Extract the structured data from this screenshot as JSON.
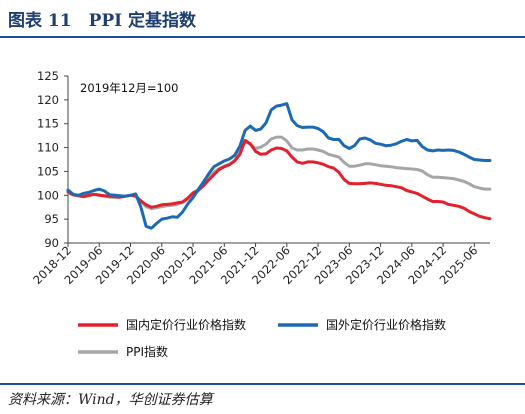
{
  "figure": {
    "title": "图表 11　PPI 定基指数",
    "source": "资料来源：Wind，华创证券估算"
  },
  "chart_data": {
    "type": "line",
    "annotation": "2019年12月=100",
    "ylim": [
      90,
      125
    ],
    "yticks": [
      90,
      95,
      100,
      105,
      110,
      115,
      120,
      125
    ],
    "xticks": [
      "2018-12",
      "2019-06",
      "2019-12",
      "2020-06",
      "2020-12",
      "2021-06",
      "2021-12",
      "2022-06",
      "2022-12",
      "2023-06",
      "2023-12",
      "2024-06",
      "2024-12",
      "2025-06"
    ],
    "x_start": "2018-12",
    "legend_position": "bottom",
    "grid": false,
    "series": [
      {
        "name": "国内定价行业价格指数",
        "color": "#e3202c",
        "values": [
          100.8,
          100.1,
          99.9,
          99.7,
          100.0,
          100.2,
          100.0,
          99.9,
          99.8,
          99.7,
          99.6,
          99.8,
          100.0,
          99.8,
          98.8,
          98.0,
          97.5,
          97.7,
          98.0,
          98.1,
          98.2,
          98.4,
          98.6,
          99.4,
          100.5,
          101.1,
          102.0,
          103.2,
          104.3,
          105.4,
          106.0,
          106.4,
          107.2,
          108.6,
          111.5,
          110.8,
          109.2,
          108.6,
          108.7,
          109.5,
          109.9,
          109.8,
          109.3,
          108.0,
          107.0,
          106.7,
          107.0,
          107.0,
          106.8,
          106.5,
          106.0,
          105.7,
          104.8,
          103.3,
          102.5,
          102.4,
          102.4,
          102.5,
          102.6,
          102.5,
          102.3,
          102.1,
          102.0,
          101.8,
          101.6,
          101.0,
          100.7,
          100.4,
          99.8,
          99.2,
          98.7,
          98.7,
          98.6,
          98.1,
          97.9,
          97.7,
          97.3,
          96.6,
          96.1,
          95.6,
          95.3,
          95.1
        ]
      },
      {
        "name": "国外定价行业价格指数",
        "color": "#1c6ab4",
        "values": [
          101.1,
          100.2,
          100.0,
          100.4,
          100.6,
          101.0,
          101.3,
          100.9,
          100.1,
          100.0,
          99.9,
          99.8,
          100.0,
          100.3,
          97.5,
          93.5,
          93.1,
          94.1,
          95.0,
          95.2,
          95.5,
          95.4,
          96.5,
          98.2,
          99.5,
          101.2,
          102.8,
          104.5,
          106.0,
          106.6,
          107.2,
          107.6,
          108.4,
          110.3,
          113.6,
          114.5,
          113.6,
          113.9,
          115.2,
          117.9,
          118.7,
          118.9,
          119.2,
          115.8,
          114.6,
          114.2,
          114.3,
          114.3,
          114.0,
          113.3,
          112.0,
          111.7,
          111.7,
          110.4,
          109.8,
          110.4,
          111.8,
          112.0,
          111.6,
          110.9,
          110.7,
          110.4,
          110.5,
          110.8,
          111.3,
          111.7,
          111.4,
          111.5,
          110.2,
          109.5,
          109.3,
          109.5,
          109.4,
          109.5,
          109.4,
          109.1,
          108.6,
          108.0,
          107.5,
          107.4,
          107.3,
          107.3
        ]
      },
      {
        "name": "PPI指数",
        "color": "#a6a6a6",
        "values": [
          100.5,
          100.1,
          99.9,
          99.7,
          99.9,
          100.2,
          100.1,
          99.8,
          99.6,
          99.6,
          99.6,
          99.8,
          100.0,
          99.8,
          98.8,
          97.6,
          97.2,
          97.4,
          97.6,
          97.8,
          97.9,
          98.1,
          98.5,
          99.2,
          100.0,
          100.9,
          102.0,
          103.6,
          104.8,
          105.6,
          106.1,
          106.5,
          107.3,
          109.5,
          111.2,
          110.7,
          109.8,
          110.1,
          110.7,
          111.8,
          112.2,
          112.2,
          111.4,
          109.9,
          109.5,
          109.5,
          109.7,
          109.7,
          109.5,
          109.2,
          108.6,
          108.3,
          108.0,
          106.9,
          106.1,
          106.1,
          106.3,
          106.6,
          106.6,
          106.4,
          106.2,
          106.1,
          106.0,
          105.8,
          105.7,
          105.6,
          105.5,
          105.4,
          105.1,
          104.3,
          103.8,
          103.8,
          103.7,
          103.6,
          103.5,
          103.2,
          102.9,
          102.4,
          101.8,
          101.5,
          101.3,
          101.3
        ]
      }
    ]
  }
}
